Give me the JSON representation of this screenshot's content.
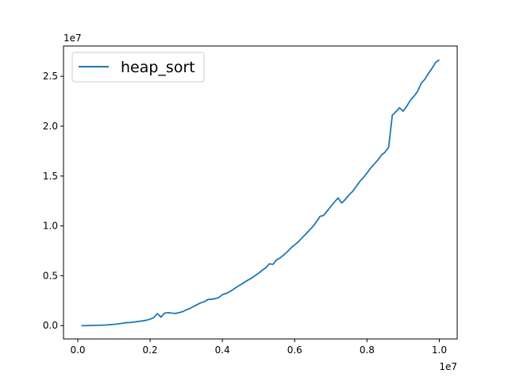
{
  "chart_data": {
    "type": "line",
    "title": "",
    "xlabel": "",
    "ylabel": "",
    "x_offset_text": "1e7",
    "y_offset_text": "1e7",
    "xlim": [
      -0.0395,
      1.0495
    ],
    "ylim": [
      -0.1335,
      2.8036
    ],
    "x_scale_note": "x values in units of 1e7",
    "y_scale_note": "y values in units of 1e7",
    "x_ticks": [
      0.0,
      0.2,
      0.4,
      0.6,
      0.8,
      1.0
    ],
    "x_tick_labels": [
      "0.0",
      "0.2",
      "0.4",
      "0.6",
      "0.8",
      "1.0"
    ],
    "y_ticks": [
      0.0,
      0.5,
      1.0,
      1.5,
      2.0,
      2.5
    ],
    "y_tick_labels": [
      "0.0",
      "0.5",
      "1.0",
      "1.5",
      "2.0",
      "2.5"
    ],
    "grid": false,
    "legend": {
      "position": "top-left"
    },
    "series": [
      {
        "name": "heap_sort",
        "color": "#1f77b4",
        "x": [
          0.01,
          0.02,
          0.03,
          0.04,
          0.05,
          0.06,
          0.07,
          0.08,
          0.09,
          0.1,
          0.11,
          0.12,
          0.13,
          0.14,
          0.15,
          0.16,
          0.17,
          0.18,
          0.19,
          0.2,
          0.21,
          0.22,
          0.23,
          0.24,
          0.25,
          0.26,
          0.27,
          0.28,
          0.29,
          0.3,
          0.31,
          0.32,
          0.33,
          0.34,
          0.35,
          0.36,
          0.37,
          0.38,
          0.39,
          0.4,
          0.41,
          0.42,
          0.43,
          0.44,
          0.45,
          0.46,
          0.47,
          0.48,
          0.49,
          0.5,
          0.51,
          0.52,
          0.53,
          0.54,
          0.55,
          0.56,
          0.57,
          0.58,
          0.59,
          0.6,
          0.61,
          0.62,
          0.63,
          0.64,
          0.65,
          0.66,
          0.67,
          0.68,
          0.69,
          0.7,
          0.71,
          0.72,
          0.73,
          0.74,
          0.75,
          0.76,
          0.77,
          0.78,
          0.79,
          0.8,
          0.81,
          0.82,
          0.83,
          0.84,
          0.85,
          0.86,
          0.87,
          0.88,
          0.89,
          0.9,
          0.91,
          0.92,
          0.93,
          0.94,
          0.95,
          0.96,
          0.97,
          0.98,
          0.99,
          1.0
        ],
        "y": [
          0.0,
          0.0,
          0.001,
          0.002,
          0.003,
          0.004,
          0.005,
          0.007,
          0.01,
          0.013,
          0.017,
          0.022,
          0.028,
          0.03,
          0.034,
          0.038,
          0.043,
          0.048,
          0.054,
          0.065,
          0.08,
          0.12,
          0.085,
          0.125,
          0.13,
          0.125,
          0.122,
          0.13,
          0.14,
          0.158,
          0.172,
          0.192,
          0.21,
          0.228,
          0.24,
          0.262,
          0.265,
          0.27,
          0.282,
          0.31,
          0.322,
          0.34,
          0.363,
          0.388,
          0.41,
          0.432,
          0.455,
          0.475,
          0.5,
          0.525,
          0.555,
          0.58,
          0.62,
          0.615,
          0.66,
          0.68,
          0.71,
          0.742,
          0.78,
          0.81,
          0.84,
          0.88,
          0.915,
          0.955,
          0.992,
          1.04,
          1.095,
          1.105,
          1.15,
          1.195,
          1.24,
          1.28,
          1.23,
          1.265,
          1.31,
          1.345,
          1.395,
          1.445,
          1.485,
          1.53,
          1.58,
          1.62,
          1.66,
          1.71,
          1.74,
          1.79,
          2.11,
          2.145,
          2.185,
          2.15,
          2.2,
          2.26,
          2.3,
          2.35,
          2.43,
          2.47,
          2.53,
          2.58,
          2.64,
          2.665
        ]
      }
    ]
  }
}
